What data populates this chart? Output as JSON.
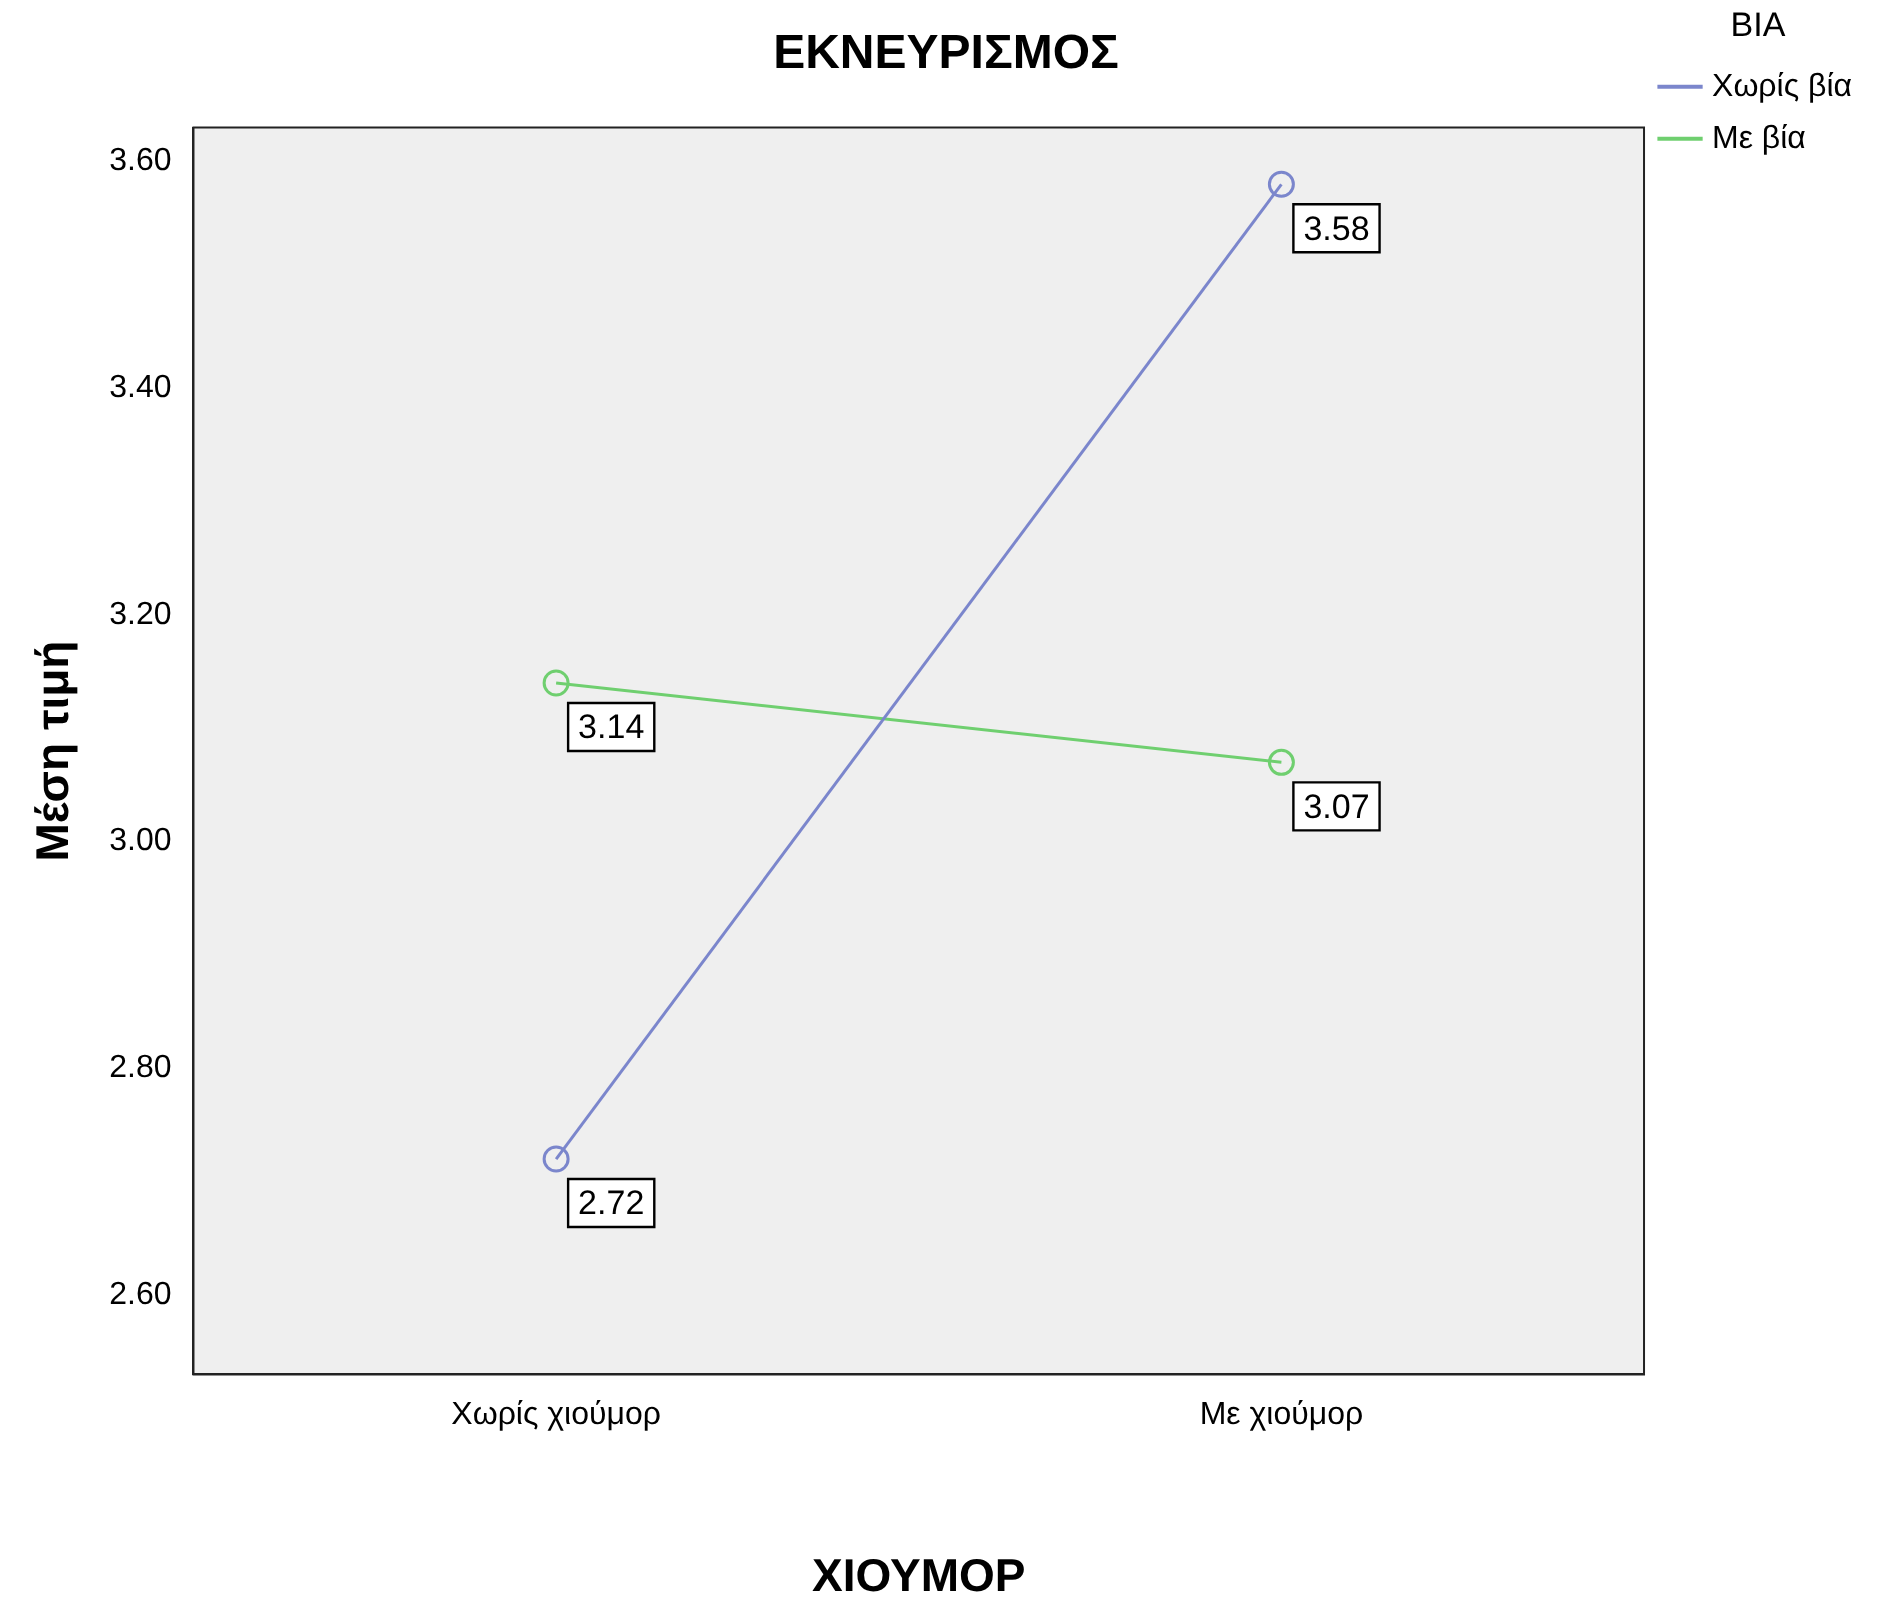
{
  "chart_data": {
    "type": "line",
    "title": "ΕΚΝΕΥΡΙΣΜΟΣ",
    "xlabel": "ΧΙΟΥΜΟΡ",
    "ylabel": "Μέση τιμή",
    "legend_title": "ΒΙΑ",
    "categories": [
      "Χωρίς χιούμορ",
      "Με χιούμορ"
    ],
    "series": [
      {
        "name": "Χωρίς βία",
        "color": "#7b86cc",
        "values": [
          2.72,
          3.58
        ]
      },
      {
        "name": "Με βία",
        "color": "#6fcf6f",
        "values": [
          3.14,
          3.07
        ]
      }
    ],
    "ylim": [
      2.53,
      3.63
    ],
    "yticks": [
      {
        "value": 2.6,
        "label": "2.60"
      },
      {
        "value": 2.8,
        "label": "2.80"
      },
      {
        "value": 3.0,
        "label": "3.00"
      },
      {
        "value": 3.2,
        "label": "3.20"
      },
      {
        "value": 3.4,
        "label": "3.40"
      },
      {
        "value": 3.6,
        "label": "3.60"
      }
    ],
    "data_labels": true,
    "marker": "circle",
    "line_style": "solid",
    "grid": false,
    "legend": "top right"
  }
}
